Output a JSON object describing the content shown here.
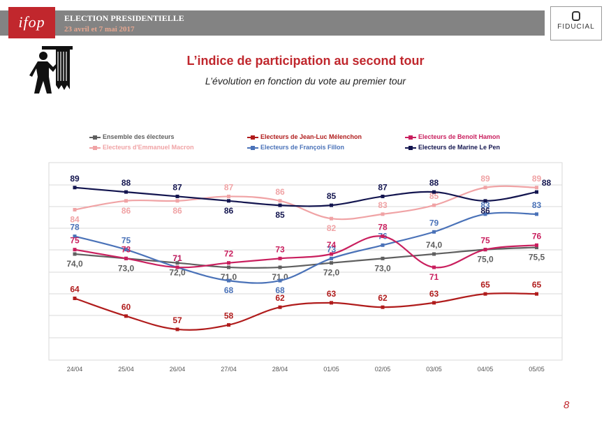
{
  "header": {
    "logo_text": "ifop",
    "title": "ELECTION PRESIDENTIELLE",
    "dates": "23 avril et 7 mai 2017",
    "partner": "FIDUCIAL"
  },
  "icons": {
    "voter": "voting-booth-icon"
  },
  "page": {
    "title": "L’indice de participation au second tour",
    "subtitle": "L’évolution en fonction du vote au premier tour",
    "number": "8"
  },
  "chart_data": {
    "type": "line",
    "x": [
      "24/04",
      "25/04",
      "26/04",
      "27/04",
      "28/04",
      "01/05",
      "02/05",
      "03/05",
      "04/05",
      "05/05"
    ],
    "ylim": [
      50,
      95
    ],
    "grid": true,
    "legend_position": "top",
    "series": [
      {
        "name": "Ensemble des électeurs",
        "color": "#5f5f5f",
        "values": [
          74.0,
          73.0,
          72.0,
          71.0,
          71.0,
          72.0,
          73.0,
          74.0,
          75.0,
          75.5
        ],
        "labels": [
          "74,0",
          "73,0",
          "72,0",
          "71,0",
          "71,0",
          "72,0",
          "73,0",
          "74,0",
          "75,0",
          "75,5"
        ]
      },
      {
        "name": "Electeurs d'Emmanuel Macron",
        "color": "#f0a3a5",
        "values": [
          84,
          86,
          86,
          87,
          86,
          82,
          83,
          85,
          89,
          89
        ],
        "labels": [
          "84",
          "86",
          "86",
          "87",
          "86",
          "82",
          "83",
          "85",
          "89",
          "89"
        ]
      },
      {
        "name": "Electeurs de Jean-Luc Mélenchon",
        "color": "#b01c1c",
        "values": [
          64,
          60,
          57,
          58,
          62,
          63,
          62,
          63,
          65,
          65
        ],
        "labels": [
          "64",
          "60",
          "57",
          "58",
          "62",
          "63",
          "62",
          "63",
          "65",
          "65"
        ]
      },
      {
        "name": "Electeurs de François Fillon",
        "color": "#4a72b8",
        "values": [
          78,
          75,
          71,
          68,
          68,
          73,
          76,
          79,
          83,
          83
        ],
        "labels": [
          "78",
          "75",
          "71",
          "68",
          "68",
          "73",
          "76",
          "79",
          "83",
          "83"
        ]
      },
      {
        "name": "Electeurs de Benoît Hamon",
        "color": "#c91f5e",
        "values": [
          75,
          73,
          71,
          72,
          73,
          74,
          78,
          71,
          75,
          76
        ],
        "labels": [
          "75",
          "73",
          "71",
          "72",
          "73",
          "74",
          "78",
          "71",
          "75",
          "76"
        ]
      },
      {
        "name": "Electeurs de Marine Le Pen",
        "color": "#13154f",
        "values": [
          89,
          88,
          87,
          86,
          85,
          85,
          87,
          88,
          86,
          88
        ],
        "labels": [
          "89",
          "88",
          "87",
          "86",
          "85",
          "85",
          "87",
          "88",
          "86",
          "88"
        ]
      }
    ]
  }
}
